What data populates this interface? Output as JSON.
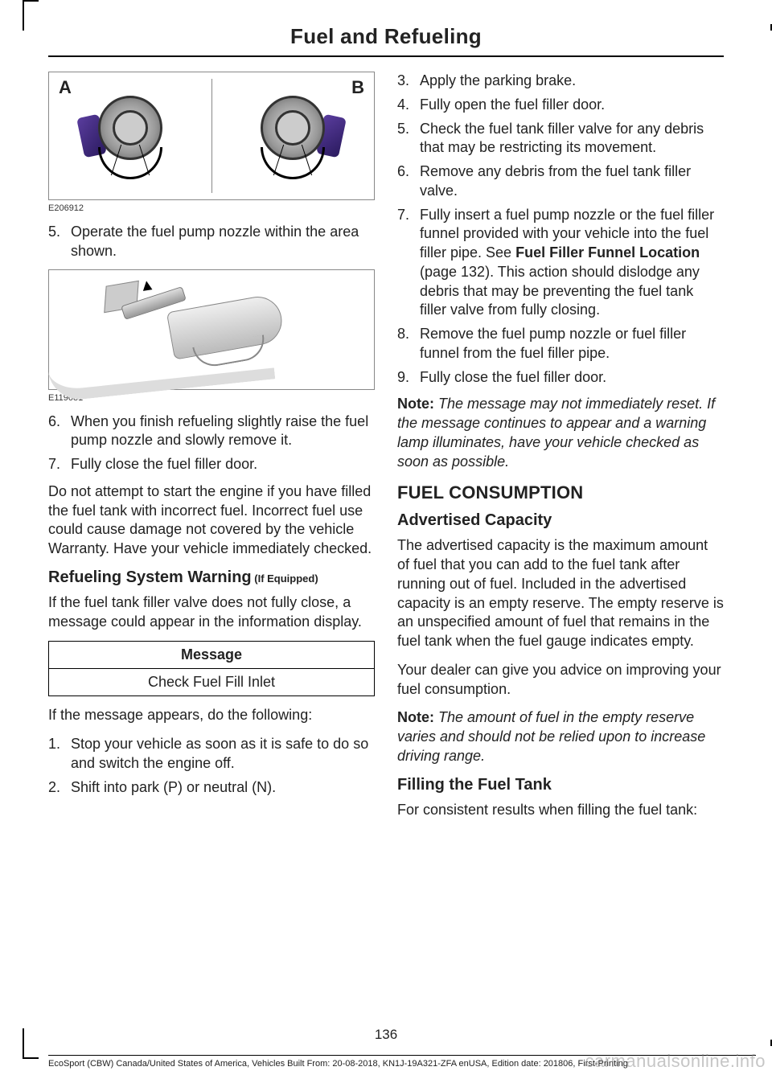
{
  "header": "Fuel and Refueling",
  "fig1": {
    "labelA": "A",
    "labelB": "B",
    "code": "E206912"
  },
  "fig2": {
    "code": "E119081"
  },
  "left": {
    "step5": "Operate the fuel pump nozzle within the area shown.",
    "step6": "When you finish refueling slightly raise the fuel pump nozzle and slowly remove it.",
    "step7": "Fully close the fuel filler door.",
    "para1": "Do not attempt to start the engine if you have filled the fuel tank with incorrect fuel. Incorrect fuel use could cause damage not covered by the vehicle Warranty. Have your vehicle immediately checked.",
    "sub1": "Refueling System Warning",
    "sub1_qual": " (If Equipped)",
    "para2": "If the fuel tank filler valve does not fully close, a message could appear in the information display.",
    "table": {
      "header": "Message",
      "row": "Check Fuel Fill Inlet"
    },
    "para3": "If the message appears, do the following:",
    "step_b1": "Stop your vehicle as soon as it is safe to do so and switch the engine off.",
    "step_b2": "Shift into park (P) or neutral (N)."
  },
  "right": {
    "step3": "Apply the parking brake.",
    "step4": "Fully open the fuel filler door.",
    "step5": "Check the fuel tank filler valve for any debris that may be restricting its movement.",
    "step6": "Remove any debris from the fuel tank filler valve.",
    "step7a": "Fully insert a fuel pump nozzle or the fuel filler funnel provided with your vehicle into the fuel filler pipe.  See ",
    "step7b": "Fuel Filler Funnel Location",
    "step7c": " (page 132).   This action should dislodge any debris that may be preventing the fuel tank filler valve from fully closing.",
    "step8": "Remove the fuel pump nozzle or fuel filler funnel from the fuel filler pipe.",
    "step9": "Fully close the fuel filler door.",
    "note1_label": "Note:",
    "note1": " The message may not immediately reset. If the message continues to appear and a warning lamp illuminates, have your vehicle checked as soon as possible.",
    "h2": "FUEL CONSUMPTION",
    "sub2": "Advertised Capacity",
    "para4": "The advertised capacity is the maximum amount of fuel that you can add to the fuel tank after running out of fuel. Included in the advertised capacity is an empty reserve. The empty reserve is an unspecified amount of fuel that remains in the fuel tank when the fuel gauge indicates empty.",
    "para5": "Your dealer can give you advice on improving your fuel consumption.",
    "note2_label": "Note:",
    "note2": " The amount of fuel in the empty reserve varies and should not be relied upon to increase driving range.",
    "sub3": "Filling the Fuel Tank",
    "para6": "For consistent results when filling the fuel tank:"
  },
  "page_num": "136",
  "footer": "EcoSport (CBW) Canada/United States of America, Vehicles Built From: 20-08-2018, KN1J-19A321-ZFA enUSA, Edition date: 201806, First-Printing",
  "watermark": "carmanualsonline.info"
}
